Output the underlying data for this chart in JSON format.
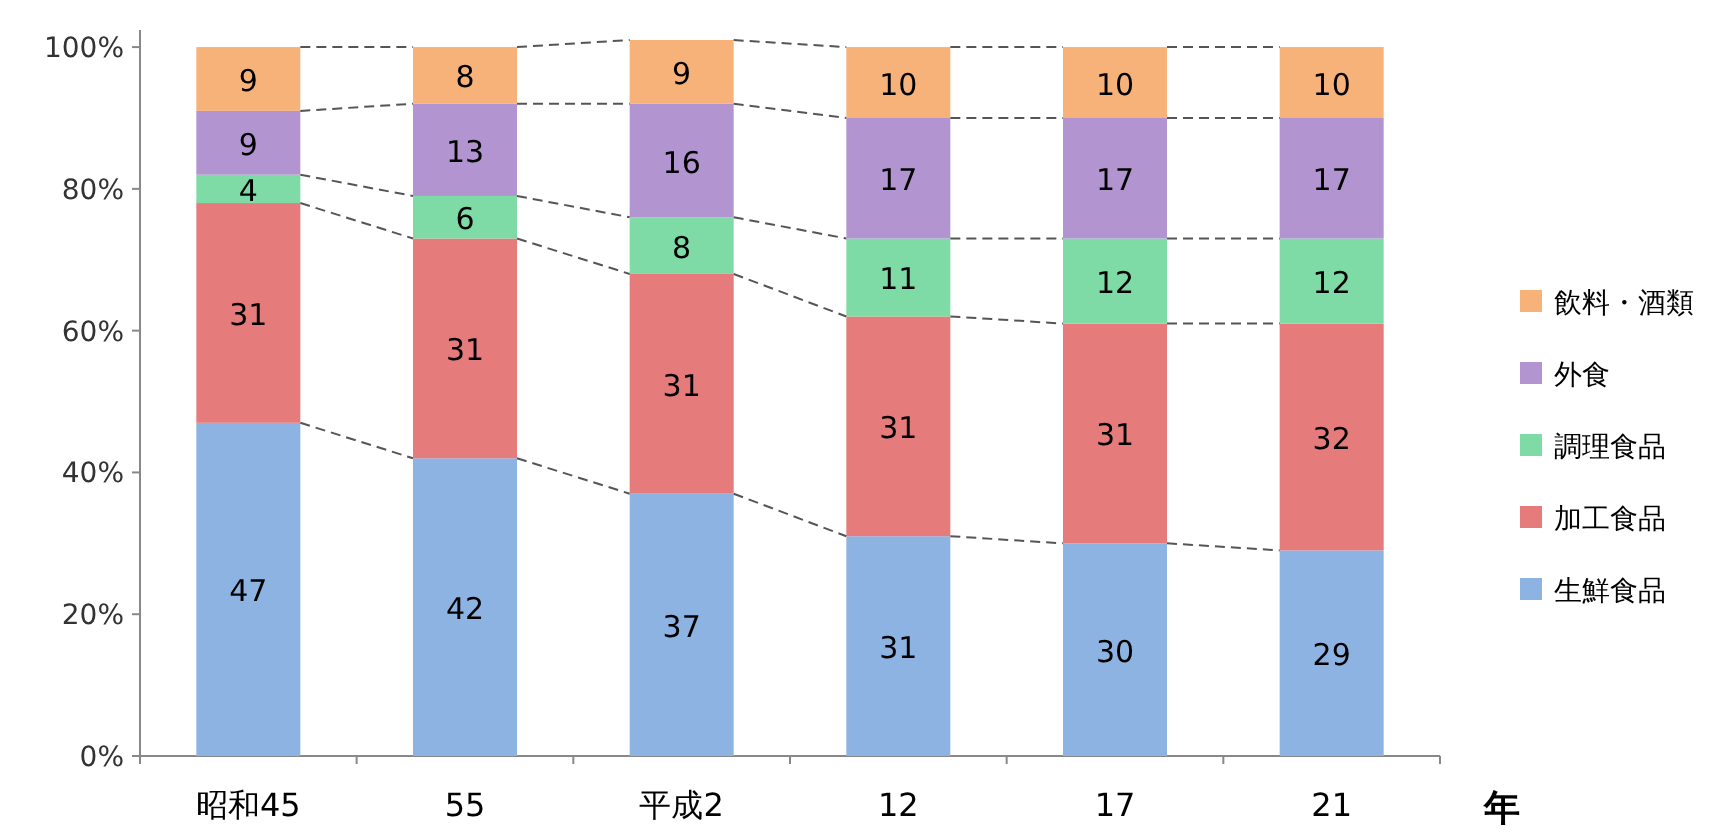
{
  "chart_data": {
    "type": "bar",
    "stacked": true,
    "xlabel": "年",
    "categories": [
      "昭和45",
      "55",
      "平成2",
      "12",
      "17",
      "21"
    ],
    "series": [
      {
        "name": "生鮮食品",
        "color": "#8db3e2",
        "values": [
          47,
          42,
          37,
          31,
          30,
          29
        ]
      },
      {
        "name": "加工食品",
        "color": "#e57b7b",
        "values": [
          31,
          31,
          31,
          31,
          31,
          32
        ]
      },
      {
        "name": "調理食品",
        "color": "#7fdba6",
        "values": [
          4,
          6,
          8,
          11,
          12,
          12
        ]
      },
      {
        "name": "外食",
        "color": "#b194d0",
        "values": [
          9,
          13,
          16,
          17,
          17,
          17
        ]
      },
      {
        "name": "飲料・酒類",
        "color": "#f7b27a",
        "values": [
          9,
          8,
          9,
          10,
          10,
          10
        ]
      }
    ],
    "ylim": [
      0,
      101
    ],
    "yticks": [
      {
        "value": 0,
        "label": "0%"
      },
      {
        "value": 20,
        "label": "20%"
      },
      {
        "value": 40,
        "label": "40%"
      },
      {
        "value": 60,
        "label": "60%"
      },
      {
        "value": 80,
        "label": "80%"
      },
      {
        "value": 100,
        "label": "100%"
      }
    ],
    "data_labels": true,
    "legend": "right",
    "grid": false
  }
}
